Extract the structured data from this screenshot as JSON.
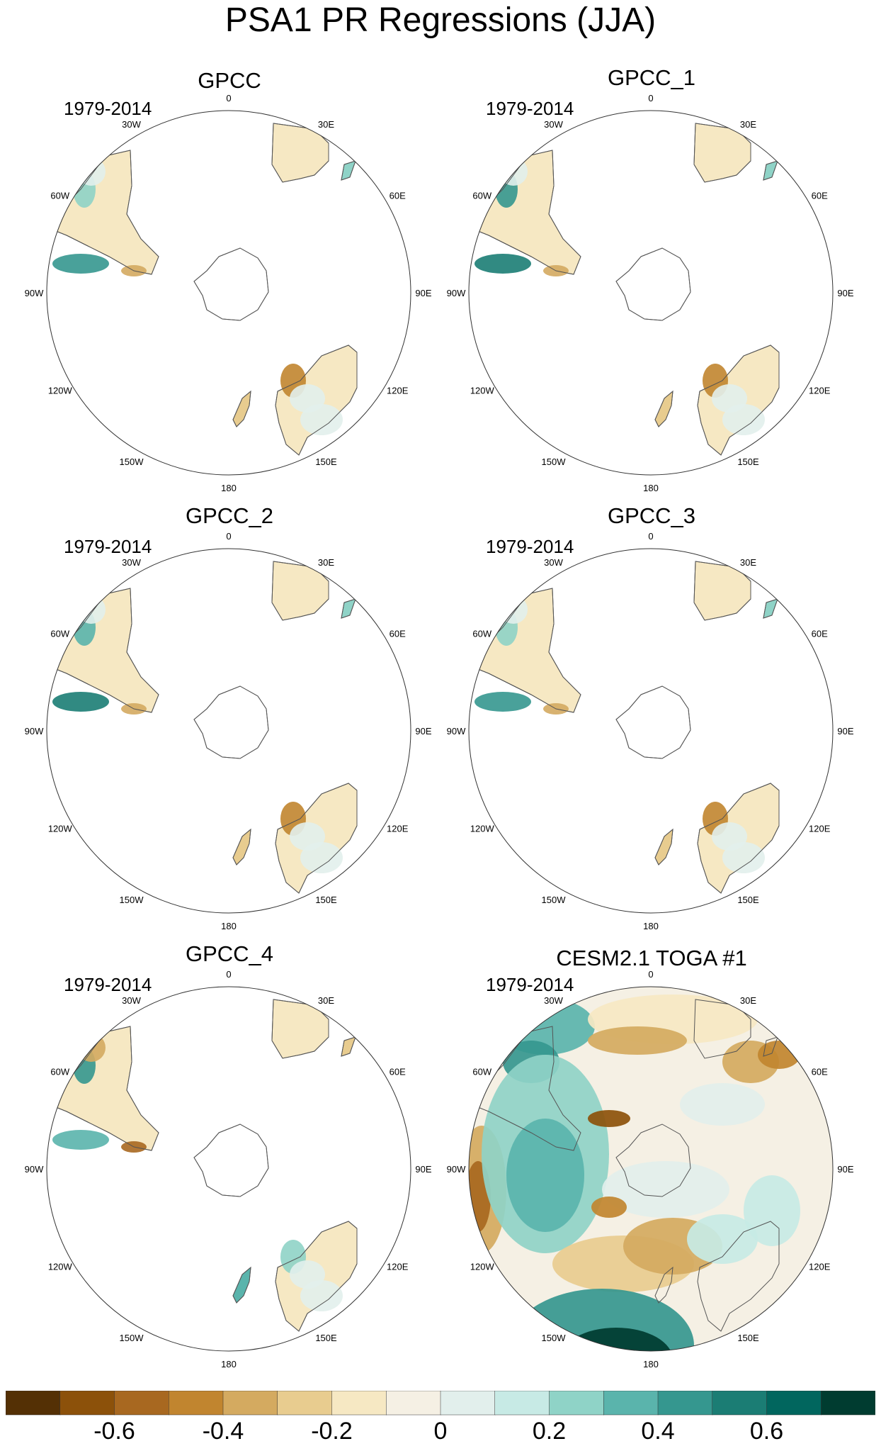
{
  "title": "PSA1 PR Regressions (JJA)",
  "period": "1979-2014",
  "lon_labels": [
    "0",
    "30E",
    "60E",
    "90E",
    "120E",
    "150E",
    "180",
    "150W",
    "120W",
    "90W",
    "60W",
    "30W"
  ],
  "panels": [
    {
      "name": "GPCC"
    },
    {
      "name": "GPCC_1"
    },
    {
      "name": "GPCC_2"
    },
    {
      "name": "GPCC_3"
    },
    {
      "name": "GPCC_4"
    },
    {
      "name": "CESM2.1 TOGA #1"
    }
  ],
  "colorbar": {
    "colors": [
      "#543005",
      "#8c510a",
      "#a86820",
      "#c1852f",
      "#d4aa60",
      "#e8cc8f",
      "#f6e8c3",
      "#f5f0e4",
      "#e2efec",
      "#c7eae5",
      "#8fd3c7",
      "#5ab4ac",
      "#35978f",
      "#1b7d74",
      "#01665e",
      "#003c30"
    ],
    "labels": [
      "-0.6",
      "-0.4",
      "-0.2",
      "0",
      "0.2",
      "0.4",
      "0.6"
    ]
  }
}
